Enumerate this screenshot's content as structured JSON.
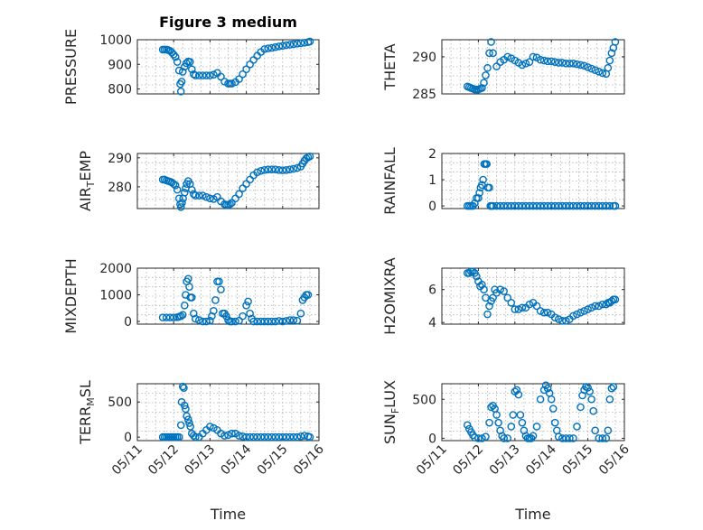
{
  "chart_data": [
    {
      "type": "scatter",
      "title": "Figure 3 medium",
      "ylabel": "PRESSURE",
      "xlim": [
        0,
        5
      ],
      "ylim": [
        780,
        1000
      ],
      "yticks": [
        800,
        900,
        1000
      ],
      "xticks": [
        0,
        1,
        2,
        3,
        4,
        5
      ],
      "grid": true,
      "color": "#0072bd",
      "series": [
        {
          "x": [
            0.7,
            0.75,
            0.8,
            0.85,
            0.9,
            0.95,
            1.0,
            1.05,
            1.1,
            1.15,
            1.18,
            1.2,
            1.22,
            1.25,
            1.3,
            1.35,
            1.4,
            1.45,
            1.5,
            1.55,
            1.6,
            1.7,
            1.8,
            1.9,
            2.0,
            2.1,
            2.2,
            2.3,
            2.4,
            2.5,
            2.55,
            2.6,
            2.7,
            2.8,
            2.9,
            3.0,
            3.1,
            3.2,
            3.3,
            3.4,
            3.5,
            3.6,
            3.7,
            3.8,
            3.9,
            4.0,
            4.1,
            4.2,
            4.3,
            4.4,
            4.5,
            4.6,
            4.7,
            4.75
          ],
          "y": [
            960,
            960,
            960,
            958,
            955,
            948,
            940,
            930,
            910,
            875,
            820,
            790,
            830,
            870,
            890,
            905,
            912,
            910,
            880,
            860,
            855,
            855,
            855,
            855,
            855,
            858,
            865,
            850,
            830,
            822,
            822,
            822,
            828,
            840,
            860,
            880,
            900,
            918,
            935,
            950,
            962,
            965,
            967,
            970,
            973,
            975,
            978,
            980,
            982,
            984,
            986,
            988,
            990,
            993
          ]
        }
      ]
    },
    {
      "type": "scatter",
      "ylabel": "THETA",
      "xlim": [
        0,
        5
      ],
      "ylim": [
        285,
        292.3
      ],
      "yticks": [
        285,
        290
      ],
      "xticks": [
        0,
        1,
        2,
        3,
        4,
        5
      ],
      "grid": true,
      "color": "#0072bd",
      "series": [
        {
          "x": [
            0.7,
            0.75,
            0.8,
            0.85,
            0.9,
            0.95,
            1.0,
            1.05,
            1.1,
            1.15,
            1.2,
            1.25,
            1.3,
            1.35,
            1.4,
            1.5,
            1.6,
            1.7,
            1.8,
            1.9,
            2.0,
            2.1,
            2.2,
            2.3,
            2.4,
            2.5,
            2.6,
            2.7,
            2.8,
            2.9,
            3.0,
            3.1,
            3.2,
            3.3,
            3.4,
            3.5,
            3.6,
            3.7,
            3.8,
            3.9,
            4.0,
            4.1,
            4.2,
            4.3,
            4.4,
            4.5,
            4.55,
            4.6,
            4.65,
            4.7,
            4.75
          ],
          "y": [
            286.0,
            285.9,
            285.8,
            285.7,
            285.6,
            285.6,
            285.6,
            285.7,
            285.8,
            286.5,
            287.5,
            288.5,
            290.5,
            292.0,
            290.5,
            288.7,
            289.3,
            289.6,
            290.0,
            289.8,
            289.5,
            289.2,
            288.9,
            289.1,
            289.3,
            290.0,
            289.9,
            289.6,
            289.5,
            289.4,
            289.4,
            289.3,
            289.2,
            289.2,
            289.1,
            289.1,
            289.1,
            289.0,
            288.9,
            288.8,
            288.6,
            288.4,
            288.2,
            288.0,
            287.8,
            287.7,
            288.5,
            289.5,
            290.5,
            291.2,
            292.0
          ]
        }
      ]
    },
    {
      "type": "scatter",
      "ylabel": "AIR_TEMP",
      "xlim": [
        0,
        5
      ],
      "ylim": [
        272.5,
        291.5
      ],
      "yticks": [
        280,
        290
      ],
      "xticks": [
        0,
        1,
        2,
        3,
        4,
        5
      ],
      "grid": true,
      "color": "#0072bd",
      "series": [
        {
          "x": [
            0.7,
            0.75,
            0.8,
            0.85,
            0.9,
            0.95,
            1.0,
            1.05,
            1.1,
            1.15,
            1.18,
            1.2,
            1.23,
            1.26,
            1.3,
            1.33,
            1.36,
            1.4,
            1.45,
            1.5,
            1.55,
            1.6,
            1.7,
            1.8,
            1.9,
            2.0,
            2.1,
            2.2,
            2.3,
            2.4,
            2.45,
            2.5,
            2.55,
            2.6,
            2.7,
            2.8,
            2.9,
            3.0,
            3.1,
            3.2,
            3.3,
            3.4,
            3.5,
            3.6,
            3.7,
            3.8,
            3.9,
            4.0,
            4.1,
            4.2,
            4.3,
            4.4,
            4.5,
            4.55,
            4.6,
            4.65,
            4.7,
            4.75
          ],
          "y": [
            282.5,
            282.5,
            282.2,
            282.0,
            281.8,
            281.5,
            281.0,
            280.5,
            279.0,
            276.0,
            274.0,
            273.0,
            274.5,
            276.0,
            278.0,
            279.5,
            281.0,
            282.0,
            281.0,
            279.0,
            277.5,
            277.0,
            277.0,
            277.0,
            276.5,
            276.0,
            275.8,
            276.5,
            275.0,
            274.0,
            273.8,
            273.8,
            274.0,
            274.5,
            276.0,
            277.5,
            279.5,
            281.0,
            282.5,
            284.0,
            285.0,
            285.5,
            285.8,
            286.0,
            286.0,
            286.0,
            285.8,
            285.7,
            285.8,
            286.0,
            286.2,
            286.5,
            287.0,
            288.0,
            289.0,
            289.8,
            290.2,
            290.5
          ]
        }
      ]
    },
    {
      "type": "scatter",
      "ylabel": "RAINFALL",
      "xlim": [
        0,
        5
      ],
      "ylim": [
        -0.1,
        2
      ],
      "yticks": [
        0,
        1,
        2
      ],
      "xticks": [
        0,
        1,
        2,
        3,
        4,
        5
      ],
      "grid": true,
      "color": "#0072bd",
      "series": [
        {
          "x": [
            0.7,
            0.75,
            0.8,
            0.85,
            0.9,
            0.95,
            1.0,
            1.03,
            1.06,
            1.1,
            1.13,
            1.16,
            1.2,
            1.23,
            1.26,
            1.3,
            1.33,
            1.36,
            1.4,
            1.5,
            1.6,
            1.7,
            1.8,
            1.9,
            2.0,
            2.1,
            2.2,
            2.3,
            2.4,
            2.5,
            2.6,
            2.7,
            2.8,
            2.9,
            3.0,
            3.1,
            3.2,
            3.3,
            3.4,
            3.5,
            3.6,
            3.7,
            3.8,
            3.9,
            4.0,
            4.1,
            4.2,
            4.3,
            4.4,
            4.5,
            4.6,
            4.7,
            4.75
          ],
          "y": [
            0,
            0,
            0,
            0,
            0.1,
            0.3,
            0.3,
            0.5,
            0.7,
            0.8,
            1.0,
            1.6,
            1.6,
            1.6,
            0.7,
            0.7,
            0,
            0,
            0,
            0,
            0,
            0,
            0,
            0,
            0,
            0,
            0,
            0,
            0,
            0,
            0,
            0,
            0,
            0,
            0,
            0,
            0,
            0,
            0,
            0,
            0,
            0,
            0,
            0,
            0,
            0,
            0,
            0,
            0,
            0,
            0,
            0,
            0
          ]
        }
      ]
    },
    {
      "type": "scatter",
      "ylabel": "MIXDEPTH",
      "xlim": [
        0,
        5
      ],
      "ylim": [
        -100,
        2000
      ],
      "yticks": [
        0,
        1000,
        2000
      ],
      "xticks": [
        0,
        1,
        2,
        3,
        4,
        5
      ],
      "grid": true,
      "color": "#0072bd",
      "series": [
        {
          "x": [
            0.7,
            0.8,
            0.9,
            1.0,
            1.1,
            1.15,
            1.2,
            1.25,
            1.3,
            1.33,
            1.36,
            1.4,
            1.43,
            1.46,
            1.5,
            1.55,
            1.6,
            1.7,
            1.8,
            1.9,
            2.0,
            2.05,
            2.1,
            2.15,
            2.2,
            2.25,
            2.3,
            2.35,
            2.4,
            2.45,
            2.5,
            2.55,
            2.6,
            2.7,
            2.8,
            2.9,
            3.0,
            3.05,
            3.1,
            3.15,
            3.2,
            3.3,
            3.4,
            3.5,
            3.6,
            3.7,
            3.8,
            3.9,
            4.0,
            4.1,
            4.2,
            4.3,
            4.4,
            4.5,
            4.55,
            4.6,
            4.65,
            4.7
          ],
          "y": [
            150,
            150,
            150,
            150,
            160,
            180,
            200,
            250,
            600,
            1000,
            1500,
            1600,
            1300,
            900,
            900,
            300,
            100,
            50,
            0,
            0,
            30,
            200,
            400,
            800,
            1500,
            1500,
            1200,
            300,
            300,
            200,
            50,
            0,
            0,
            0,
            30,
            200,
            600,
            750,
            300,
            100,
            0,
            0,
            0,
            0,
            0,
            0,
            0,
            20,
            0,
            20,
            50,
            50,
            30,
            300,
            800,
            900,
            1000,
            1000
          ]
        }
      ]
    },
    {
      "type": "scatter",
      "ylabel": "H2OMIXRA",
      "xlim": [
        0,
        5
      ],
      "ylim": [
        3.9,
        7.3
      ],
      "yticks": [
        4,
        6
      ],
      "xticks": [
        0,
        1,
        2,
        3,
        4,
        5
      ],
      "grid": true,
      "color": "#0072bd",
      "series": [
        {
          "x": [
            0.7,
            0.75,
            0.8,
            0.85,
            0.9,
            0.95,
            1.0,
            1.05,
            1.1,
            1.15,
            1.2,
            1.25,
            1.3,
            1.35,
            1.4,
            1.45,
            1.5,
            1.6,
            1.7,
            1.8,
            1.9,
            2.0,
            2.1,
            2.2,
            2.3,
            2.4,
            2.5,
            2.6,
            2.7,
            2.8,
            2.9,
            3.0,
            3.1,
            3.2,
            3.3,
            3.4,
            3.5,
            3.6,
            3.7,
            3.8,
            3.9,
            4.0,
            4.1,
            4.2,
            4.3,
            4.4,
            4.5,
            4.55,
            4.6,
            4.65,
            4.7,
            4.75
          ],
          "y": [
            7.0,
            7.0,
            7.1,
            7.1,
            7.0,
            6.8,
            6.5,
            6.2,
            6.3,
            6.0,
            5.5,
            4.5,
            5.0,
            5.3,
            5.5,
            6.0,
            5.8,
            6.0,
            5.9,
            5.5,
            5.2,
            4.8,
            4.8,
            4.9,
            4.9,
            5.1,
            5.2,
            5.0,
            4.7,
            4.6,
            4.6,
            4.5,
            4.3,
            4.2,
            4.1,
            4.1,
            4.2,
            4.4,
            4.5,
            4.6,
            4.7,
            4.8,
            4.9,
            5.0,
            5.0,
            5.1,
            5.1,
            5.2,
            5.2,
            5.3,
            5.4,
            5.4
          ]
        }
      ]
    },
    {
      "type": "scatter",
      "ylabel": "TERR_MSL",
      "xlim": [
        0,
        5
      ],
      "ylim": [
        -50,
        760
      ],
      "yticks": [
        0,
        500
      ],
      "xticks": [
        0,
        1,
        2,
        3,
        4,
        5
      ],
      "xticklabels": [
        "05/11",
        "05/12",
        "05/13",
        "05/14",
        "05/15",
        "05/16"
      ],
      "xlabel": "Time",
      "grid": true,
      "color": "#0072bd",
      "series": [
        {
          "x": [
            0.7,
            0.75,
            0.8,
            0.85,
            0.9,
            0.95,
            1.0,
            1.05,
            1.1,
            1.15,
            1.2,
            1.22,
            1.25,
            1.28,
            1.3,
            1.33,
            1.36,
            1.4,
            1.43,
            1.46,
            1.5,
            1.55,
            1.6,
            1.7,
            1.8,
            1.9,
            2.0,
            2.1,
            2.2,
            2.3,
            2.4,
            2.5,
            2.6,
            2.7,
            2.8,
            2.9,
            3.0,
            3.1,
            3.2,
            3.3,
            3.4,
            3.5,
            3.6,
            3.7,
            3.8,
            3.9,
            4.0,
            4.1,
            4.2,
            4.3,
            4.4,
            4.5,
            4.6,
            4.7,
            4.75
          ],
          "y": [
            0,
            0,
            0,
            0,
            0,
            0,
            0,
            0,
            0,
            0,
            170,
            500,
            720,
            700,
            450,
            400,
            300,
            250,
            200,
            150,
            50,
            20,
            0,
            0,
            50,
            100,
            150,
            130,
            100,
            50,
            20,
            30,
            50,
            50,
            20,
            10,
            0,
            0,
            0,
            0,
            0,
            0,
            0,
            0,
            0,
            0,
            0,
            0,
            0,
            0,
            0,
            10,
            20,
            10,
            0
          ]
        }
      ]
    },
    {
      "type": "scatter",
      "ylabel": "SUN_FLUX",
      "xlim": [
        0,
        5
      ],
      "ylim": [
        -30,
        700
      ],
      "yticks": [
        0,
        500
      ],
      "xticks": [
        0,
        1,
        2,
        3,
        4,
        5
      ],
      "xticklabels": [
        "05/11",
        "05/12",
        "05/13",
        "05/14",
        "05/15",
        "05/16"
      ],
      "xlabel": "Time",
      "grid": true,
      "color": "#0072bd",
      "series": [
        {
          "x": [
            0.7,
            0.75,
            0.8,
            0.85,
            0.9,
            1.0,
            1.1,
            1.2,
            1.3,
            1.35,
            1.4,
            1.45,
            1.5,
            1.55,
            1.6,
            1.65,
            1.7,
            1.8,
            1.9,
            1.95,
            2.0,
            2.05,
            2.1,
            2.15,
            2.2,
            2.25,
            2.3,
            2.35,
            2.4,
            2.45,
            2.5,
            2.6,
            2.7,
            2.8,
            2.85,
            2.9,
            2.95,
            3.0,
            3.05,
            3.1,
            3.15,
            3.2,
            3.3,
            3.4,
            3.5,
            3.6,
            3.7,
            3.8,
            3.85,
            3.9,
            3.95,
            4.0,
            4.05,
            4.1,
            4.15,
            4.2,
            4.3,
            4.4,
            4.5,
            4.55,
            4.6,
            4.65,
            4.7
          ],
          "y": [
            170,
            120,
            80,
            40,
            10,
            0,
            0,
            20,
            200,
            400,
            420,
            380,
            300,
            200,
            100,
            30,
            0,
            0,
            150,
            300,
            600,
            620,
            560,
            300,
            200,
            100,
            30,
            0,
            0,
            0,
            30,
            150,
            500,
            620,
            680,
            640,
            580,
            500,
            380,
            200,
            100,
            20,
            0,
            0,
            0,
            0,
            150,
            400,
            550,
            620,
            660,
            650,
            600,
            500,
            350,
            100,
            0,
            0,
            0,
            100,
            500,
            640,
            660
          ]
        }
      ]
    }
  ]
}
